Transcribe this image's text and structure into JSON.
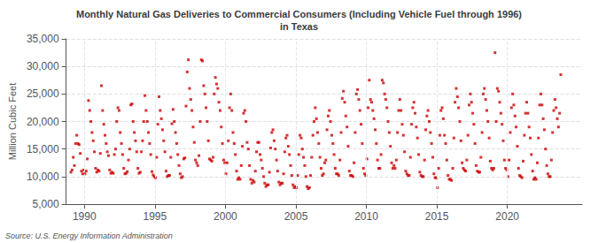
{
  "chart_data": {
    "type": "scatter",
    "title": "Monthly Natural Gas Deliveries to Commercial Consumers (Including Vehicle Fuel through 1996)\nin Texas",
    "ylabel": "Million Cubic Feet",
    "annotation": "Source: U.S. Energy Information Administration",
    "color": "#CC0000",
    "marker": "square",
    "grid": true,
    "ylim": [
      5000,
      35000
    ],
    "yticks": [
      {
        "value": 5000,
        "label": "5,000"
      },
      {
        "value": 10000,
        "label": "10,000"
      },
      {
        "value": 15000,
        "label": "15,000"
      },
      {
        "value": 20000,
        "label": "20,000"
      },
      {
        "value": 25000,
        "label": "25,000"
      },
      {
        "value": 30000,
        "label": "30,000"
      },
      {
        "value": 35000,
        "label": "35,000"
      }
    ],
    "xlim": [
      1988.7,
      2025.3
    ],
    "xticks": [
      1990,
      1995,
      2000,
      2005,
      2010,
      2015,
      2020
    ],
    "x": [
      1989.0416666666667,
      1989.125,
      1989.2083333333333,
      1989.2916666666667,
      1989.375,
      1989.4583333333333,
      1989.5416666666667,
      1989.625,
      1989.7083333333333,
      1989.7916666666667,
      1989.875,
      1989.9583333333333,
      1990.0416666666667,
      1990.125,
      1990.2083333333333,
      1990.2916666666667,
      1990.375,
      1990.4583333333333,
      1990.5416666666667,
      1990.625,
      1990.7083333333333,
      1990.7916666666667,
      1990.875,
      1990.9583333333333,
      1991.0416666666667,
      1991.125,
      1991.2083333333333,
      1991.2916666666667,
      1991.375,
      1991.4583333333333,
      1991.5416666666667,
      1991.625,
      1991.7083333333333,
      1991.7916666666667,
      1991.875,
      1991.9583333333333,
      1992.0416666666667,
      1992.125,
      1992.2083333333333,
      1992.2916666666667,
      1992.375,
      1992.4583333333333,
      1992.5416666666667,
      1992.625,
      1992.7083333333333,
      1992.7916666666667,
      1992.875,
      1992.9583333333333,
      1993.0416666666667,
      1993.125,
      1993.2083333333333,
      1993.2916666666667,
      1993.375,
      1993.4583333333333,
      1993.5416666666667,
      1993.625,
      1993.7083333333333,
      1993.7916666666667,
      1993.875,
      1993.9583333333333,
      1994.0416666666667,
      1994.125,
      1994.2083333333333,
      1994.2916666666667,
      1994.375,
      1994.4583333333333,
      1994.5416666666667,
      1994.625,
      1994.7083333333333,
      1994.7916666666667,
      1994.875,
      1994.9583333333333,
      1995.0416666666667,
      1995.125,
      1995.2083333333333,
      1995.2916666666667,
      1995.375,
      1995.4583333333333,
      1995.5416666666667,
      1995.625,
      1995.7083333333333,
      1995.7916666666667,
      1995.875,
      1995.9583333333333,
      1996.0416666666667,
      1996.125,
      1996.2083333333333,
      1996.2916666666667,
      1996.375,
      1996.4583333333333,
      1996.5416666666667,
      1996.625,
      1996.7083333333333,
      1996.7916666666667,
      1996.875,
      1996.9583333333333,
      1997.0416666666667,
      1997.125,
      1997.2083333333333,
      1997.2916666666667,
      1997.375,
      1997.4583333333333,
      1997.5416666666667,
      1997.625,
      1997.7083333333333,
      1997.7916666666667,
      1997.875,
      1997.9583333333333,
      1998.0416666666667,
      1998.125,
      1998.2083333333333,
      1998.2916666666667,
      1998.375,
      1998.4583333333333,
      1998.5416666666667,
      1998.625,
      1998.7083333333333,
      1998.7916666666667,
      1998.875,
      1998.9583333333333,
      1999.0416666666667,
      1999.125,
      1999.2083333333333,
      1999.2916666666667,
      1999.375,
      1999.4583333333333,
      1999.5416666666667,
      1999.625,
      1999.7083333333333,
      1999.7916666666667,
      1999.875,
      1999.9583333333333,
      2000.0416666666667,
      2000.125,
      2000.2083333333333,
      2000.2916666666667,
      2000.375,
      2000.4583333333333,
      2000.5416666666667,
      2000.625,
      2000.7083333333333,
      2000.7916666666667,
      2000.875,
      2000.9583333333333,
      2001.0416666666667,
      2001.125,
      2001.2083333333333,
      2001.2916666666667,
      2001.375,
      2001.4583333333333,
      2001.5416666666667,
      2001.625,
      2001.7083333333333,
      2001.7916666666667,
      2001.875,
      2001.9583333333333,
      2002.0416666666667,
      2002.125,
      2002.2083333333333,
      2002.2916666666667,
      2002.375,
      2002.4583333333333,
      2002.5416666666667,
      2002.625,
      2002.7083333333333,
      2002.7916666666667,
      2002.875,
      2002.9583333333333,
      2003.0416666666667,
      2003.125,
      2003.2083333333333,
      2003.2916666666667,
      2003.375,
      2003.4583333333333,
      2003.5416666666667,
      2003.625,
      2003.7083333333333,
      2003.7916666666667,
      2003.875,
      2003.9583333333333,
      2004.0416666666667,
      2004.125,
      2004.2083333333333,
      2004.2916666666667,
      2004.375,
      2004.4583333333333,
      2004.5416666666667,
      2004.625,
      2004.7083333333333,
      2004.7916666666667,
      2004.875,
      2004.9583333333333,
      2005.0416666666667,
      2005.125,
      2005.2083333333333,
      2005.2916666666667,
      2005.375,
      2005.4583333333333,
      2005.5416666666667,
      2005.625,
      2005.7083333333333,
      2005.7916666666667,
      2005.875,
      2005.9583333333333,
      2006.0416666666667,
      2006.125,
      2006.2083333333333,
      2006.2916666666667,
      2006.375,
      2006.4583333333333,
      2006.5416666666667,
      2006.625,
      2006.7083333333333,
      2006.7916666666667,
      2006.875,
      2006.9583333333333,
      2007.0416666666667,
      2007.125,
      2007.2083333333333,
      2007.2916666666667,
      2007.375,
      2007.4583333333333,
      2007.5416666666667,
      2007.625,
      2007.7083333333333,
      2007.7916666666667,
      2007.875,
      2007.9583333333333,
      2008.0416666666667,
      2008.125,
      2008.2083333333333,
      2008.2916666666667,
      2008.375,
      2008.4583333333333,
      2008.5416666666667,
      2008.625,
      2008.7083333333333,
      2008.7916666666667,
      2008.875,
      2008.9583333333333,
      2009.0416666666667,
      2009.125,
      2009.2083333333333,
      2009.2916666666667,
      2009.375,
      2009.4583333333333,
      2009.5416666666667,
      2009.625,
      2009.7083333333333,
      2009.7916666666667,
      2009.875,
      2009.9583333333333,
      2010.0416666666667,
      2010.125,
      2010.2083333333333,
      2010.2916666666667,
      2010.375,
      2010.4583333333333,
      2010.5416666666667,
      2010.625,
      2010.7083333333333,
      2010.7916666666667,
      2010.875,
      2010.9583333333333,
      2011.0416666666667,
      2011.125,
      2011.2083333333333,
      2011.2916666666667,
      2011.375,
      2011.4583333333333,
      2011.5416666666667,
      2011.625,
      2011.7083333333333,
      2011.7916666666667,
      2011.875,
      2011.9583333333333,
      2012.0416666666667,
      2012.125,
      2012.2083333333333,
      2012.2916666666667,
      2012.375,
      2012.4583333333333,
      2012.5416666666667,
      2012.625,
      2012.7083333333333,
      2012.7916666666667,
      2012.875,
      2012.9583333333333,
      2013.0416666666667,
      2013.125,
      2013.2083333333333,
      2013.2916666666667,
      2013.375,
      2013.4583333333333,
      2013.5416666666667,
      2013.625,
      2013.7083333333333,
      2013.7916666666667,
      2013.875,
      2013.9583333333333,
      2014.0416666666667,
      2014.125,
      2014.2083333333333,
      2014.2916666666667,
      2014.375,
      2014.4583333333333,
      2014.5416666666667,
      2014.625,
      2014.7083333333333,
      2014.7916666666667,
      2014.875,
      2014.9583333333333,
      2015.0416666666667,
      2015.125,
      2015.2083333333333,
      2015.2916666666667,
      2015.375,
      2015.4583333333333,
      2015.5416666666667,
      2015.625,
      2015.7083333333333,
      2015.7916666666667,
      2015.875,
      2015.9583333333333,
      2016.0416666666667,
      2016.125,
      2016.2083333333333,
      2016.2916666666667,
      2016.375,
      2016.4583333333333,
      2016.5416666666667,
      2016.625,
      2016.7083333333333,
      2016.7916666666667,
      2016.875,
      2016.9583333333333,
      2017.0416666666667,
      2017.125,
      2017.2083333333333,
      2017.2916666666667,
      2017.375,
      2017.4583333333333,
      2017.5416666666667,
      2017.625,
      2017.7083333333333,
      2017.7916666666667,
      2017.875,
      2017.9583333333333,
      2018.0416666666667,
      2018.125,
      2018.2083333333333,
      2018.2916666666667,
      2018.375,
      2018.4583333333333,
      2018.5416666666667,
      2018.625,
      2018.7083333333333,
      2018.7916666666667,
      2018.875,
      2018.9583333333333,
      2019.0416666666667,
      2019.125,
      2019.2083333333333,
      2019.2916666666667,
      2019.375,
      2019.4583333333333,
      2019.5416666666667,
      2019.625,
      2019.7083333333333,
      2019.7916666666667,
      2019.875,
      2019.9583333333333,
      2020.0416666666667,
      2020.125,
      2020.2083333333333,
      2020.2916666666667,
      2020.375,
      2020.4583333333333,
      2020.5416666666667,
      2020.625,
      2020.7083333333333,
      2020.7916666666667,
      2020.875,
      2020.9583333333333,
      2021.0416666666667,
      2021.125,
      2021.2083333333333,
      2021.2916666666667,
      2021.375,
      2021.4583333333333,
      2021.5416666666667,
      2021.625,
      2021.7083333333333,
      2021.7916666666667,
      2021.875,
      2021.9583333333333,
      2022.0416666666667,
      2022.125,
      2022.2083333333333,
      2022.2916666666667,
      2022.375,
      2022.4583333333333,
      2022.5416666666667,
      2022.625,
      2022.7083333333333,
      2022.7916666666667,
      2022.875,
      2022.9583333333333,
      2023.0416666666667,
      2023.125,
      2023.2083333333333,
      2023.2916666666667,
      2023.375,
      2023.4583333333333,
      2023.5416666666667,
      2023.625,
      2023.7083333333333,
      2023.7916666666667
    ],
    "values": [
      10800,
      11200,
      13500,
      12000,
      16000,
      17500,
      16000,
      15800,
      14200,
      11000,
      10500,
      11200,
      10500,
      11000,
      13200,
      23800,
      22000,
      20000,
      18000,
      16500,
      14500,
      11500,
      10800,
      11200,
      11000,
      14200,
      26500,
      22000,
      19500,
      17500,
      16000,
      14500,
      13800,
      11200,
      10600,
      10800,
      10600,
      14000,
      15000,
      20000,
      22500,
      22000,
      18000,
      16000,
      14000,
      11500,
      10500,
      10600,
      10900,
      13000,
      15000,
      23000,
      23200,
      20000,
      18000,
      16500,
      14500,
      11500,
      10600,
      10800,
      14500,
      16500,
      20000,
      24700,
      22000,
      20000,
      18000,
      16000,
      14000,
      10900,
      10300,
      10000,
      9800,
      13500,
      19500,
      24500,
      22000,
      20500,
      18500,
      16500,
      14500,
      11000,
      10000,
      10200,
      10200,
      13500,
      19600,
      22200,
      20000,
      18000,
      16000,
      14000,
      12000,
      10500,
      9800,
      10000,
      13200,
      13400,
      22800,
      29000,
      31200,
      26000,
      24000,
      22000,
      19000,
      16200,
      13000,
      12500,
      12000,
      13800,
      20000,
      31200,
      31000,
      26500,
      25000,
      22500,
      20000,
      16500,
      13200,
      13000,
      12800,
      13500,
      25000,
      28000,
      26800,
      26000,
      23500,
      22000,
      19000,
      16000,
      13000,
      12500,
      10500,
      12500,
      16500,
      22500,
      25000,
      22000,
      18000,
      16000,
      14000,
      11000,
      9500,
      9800,
      9500,
      12000,
      15500,
      21500,
      22000,
      20000,
      16200,
      15000,
      12000,
      9500,
      8800,
      9300,
      9000,
      11000,
      14500,
      16200,
      16200,
      14000,
      13000,
      11500,
      10000,
      8800,
      8200,
      8500,
      8500,
      10800,
      15200,
      18000,
      18500,
      16500,
      15000,
      13000,
      11000,
      9000,
      8500,
      8800,
      8800,
      10500,
      14500,
      17000,
      17500,
      15500,
      14000,
      12000,
      10200,
      8500,
      8000,
      8200,
      8000,
      10200,
      14000,
      17500,
      17000,
      15000,
      13500,
      12000,
      10000,
      8200,
      7800,
      8000,
      10200,
      13500,
      17500,
      20000,
      22500,
      20500,
      18000,
      16000,
      13500,
      11500,
      10200,
      10500,
      12500,
      13000,
      18500,
      21000,
      22000,
      20000,
      17500,
      16000,
      14000,
      11500,
      10500,
      10500,
      10200,
      13000,
      18000,
      24200,
      25500,
      23500,
      21000,
      19000,
      15500,
      11000,
      10200,
      10200,
      10000,
      12500,
      18000,
      25000,
      25800,
      24000,
      22000,
      19500,
      16000,
      11500,
      10500,
      10200,
      13200,
      22500,
      27500,
      24000,
      23500,
      22000,
      20500,
      18500,
      16000,
      13000,
      11500,
      11500,
      14000,
      27500,
      27000,
      25000,
      24000,
      22500,
      20000,
      18000,
      15500,
      12500,
      11500,
      12000,
      11500,
      13000,
      18000,
      22000,
      24000,
      22000,
      19500,
      17500,
      14500,
      11000,
      10500,
      10200,
      10200,
      13500,
      19500,
      22500,
      23500,
      21500,
      19000,
      17000,
      14000,
      10800,
      10200,
      10000,
      10000,
      13000,
      18500,
      21000,
      22000,
      20000,
      18000,
      16000,
      13500,
      10500,
      9800,
      9800,
      8000,
      11500,
      17500,
      22000,
      22500,
      20500,
      17500,
      16000,
      13000,
      10200,
      9500,
      9500,
      9300,
      11500,
      17000,
      23500,
      26000,
      24500,
      22500,
      20000,
      16500,
      12500,
      11500,
      11200,
      11000,
      13000,
      17500,
      23000,
      25000,
      23500,
      21500,
      19500,
      16000,
      12000,
      11000,
      10800,
      10800,
      13500,
      18000,
      25000,
      26000,
      24000,
      22000,
      20000,
      17000,
      12800,
      11500,
      11200,
      11500,
      32500,
      20000,
      26000,
      25500,
      23500,
      21500,
      19500,
      16500,
      13000,
      11500,
      11200,
      10000,
      13000,
      18000,
      22500,
      25000,
      23000,
      21000,
      19000,
      15500,
      11500,
      10200,
      10000,
      9800,
      12800,
      17500,
      21500,
      23500,
      21500,
      19000,
      17000,
      14000,
      11000,
      9500,
      9800,
      9500,
      12500,
      17000,
      23000,
      25000,
      23000,
      20500,
      18500,
      15000,
      12000,
      10500,
      10000,
      10000,
      13000,
      18000,
      22000,
      24000,
      22500,
      20500,
      19000,
      21500,
      28500
    ]
  }
}
